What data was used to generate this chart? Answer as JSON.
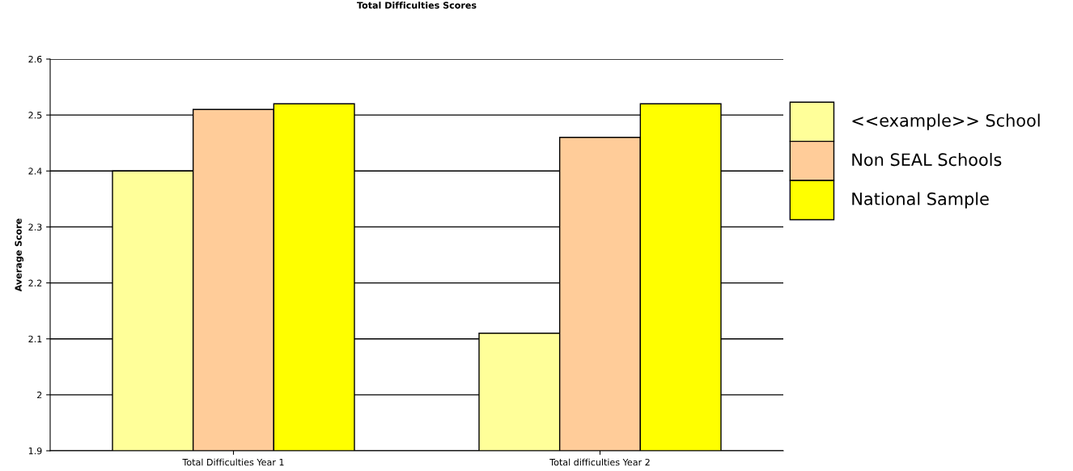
{
  "chart_data": {
    "type": "bar",
    "title": "Total Difficulties Scores",
    "ylabel": "Average Score",
    "categories": [
      "Total Difficulties Year 1",
      "Total difficulties Year 2"
    ],
    "series": [
      {
        "name": "<<example>> School",
        "color": "#ffff99",
        "values": [
          2.4,
          2.11
        ]
      },
      {
        "name": "Non SEAL Schools",
        "color": "#ffcc99",
        "values": [
          2.51,
          2.46
        ]
      },
      {
        "name": "National Sample",
        "color": "#ffff00",
        "values": [
          2.52,
          2.52
        ]
      }
    ],
    "ylim": [
      1.9,
      2.6
    ],
    "yticks": [
      1.9,
      2,
      2.1,
      2.2,
      2.3,
      2.4,
      2.5,
      2.6
    ],
    "grid": "y",
    "legend": "right"
  }
}
